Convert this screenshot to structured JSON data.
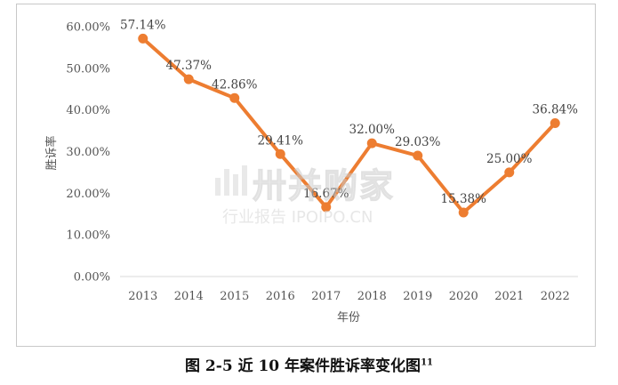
{
  "chart_data": {
    "type": "line",
    "title": "",
    "xlabel": "年份",
    "ylabel": "胜诉率",
    "ylim": [
      0,
      60
    ],
    "yticks": [
      "0.00%",
      "10.00%",
      "20.00%",
      "30.00%",
      "40.00%",
      "50.00%",
      "60.00%"
    ],
    "categories": [
      "2013",
      "2014",
      "2015",
      "2016",
      "2017",
      "2018",
      "2019",
      "2020",
      "2021",
      "2022"
    ],
    "series": [
      {
        "values": [
          57.14,
          47.37,
          42.86,
          29.41,
          16.67,
          32.0,
          29.03,
          15.38,
          25.0,
          36.84
        ],
        "labels": [
          "57.14%",
          "47.37%",
          "42.86%",
          "29.41%",
          "16.67%",
          "32.00%",
          "29.03%",
          "15.38%",
          "25.00%",
          "36.84%"
        ],
        "color": "#ED7D31"
      }
    ],
    "grid": false,
    "legend": "none"
  },
  "caption": {
    "text": "图 2-5  近 10 年案件胜诉率变化图",
    "footnote": "11"
  },
  "watermark": {
    "main": "卅并购家",
    "sub": "行业报告 IPOIPO.CN"
  }
}
